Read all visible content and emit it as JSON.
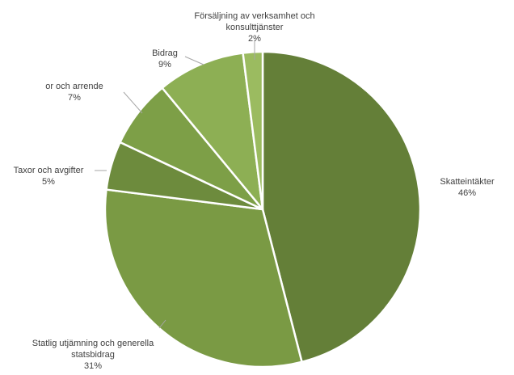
{
  "chart_data": {
    "type": "pie",
    "title": "",
    "start_angle_deg": 0,
    "direction": "clockwise",
    "slices": [
      {
        "label_lines": [
          "Skatteintäkter"
        ],
        "pct_text": "46%",
        "value": 46,
        "color": "#647f38"
      },
      {
        "label_lines": [
          "Statlig utjämning och generella",
          "statsbidrag"
        ],
        "pct_text": "31%",
        "value": 31,
        "color": "#7a9a44"
      },
      {
        "label_lines": [
          "Taxor och avgifter"
        ],
        "pct_text": "5%",
        "value": 5,
        "color": "#6d8b3d"
      },
      {
        "label_lines": [
          "or och arrende"
        ],
        "pct_text": "7%",
        "value": 7,
        "color": "#7d9f47"
      },
      {
        "label_lines": [
          "Bidrag"
        ],
        "pct_text": "9%",
        "value": 9,
        "color": "#8daf54"
      },
      {
        "label_lines": [
          "Försäljning av verksamhet och",
          "konsulttjänster"
        ],
        "pct_text": "2%",
        "value": 2,
        "color": "#9bbb60"
      }
    ]
  }
}
